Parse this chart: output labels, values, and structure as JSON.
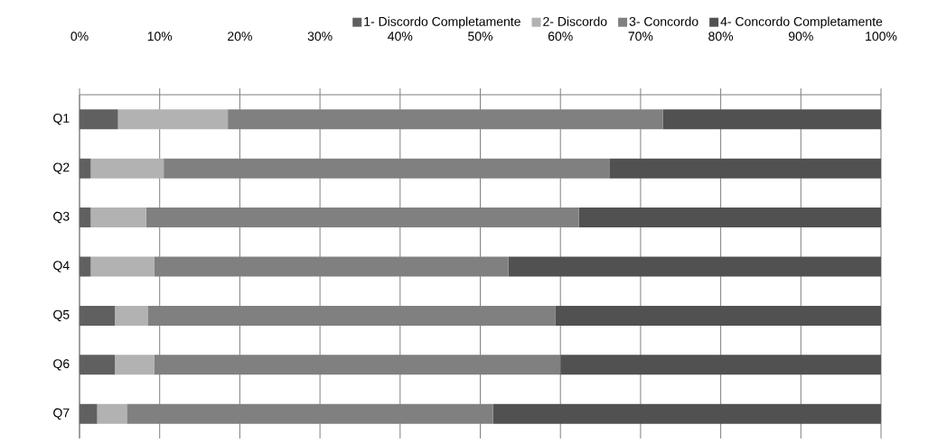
{
  "chart_data": {
    "type": "bar",
    "orientation": "horizontal",
    "stacked": true,
    "categories": [
      "Q1",
      "Q2",
      "Q3",
      "Q4",
      "Q5",
      "Q6",
      "Q7"
    ],
    "series": [
      {
        "name": "1- Discordo Completamente",
        "color": "#606060",
        "values": [
          4.8,
          1.4,
          1.4,
          1.4,
          4.4,
          4.4,
          2.2
        ]
      },
      {
        "name": "2- Discordo",
        "color": "#b2b2b2",
        "values": [
          13.7,
          9.1,
          6.9,
          7.9,
          4.1,
          4.9,
          3.7
        ]
      },
      {
        "name": "3- Concordo",
        "color": "#808080",
        "values": [
          54.3,
          55.6,
          54.0,
          44.2,
          50.9,
          50.7,
          45.7
        ]
      },
      {
        "name": "4- Concordo Completamente",
        "color": "#515151",
        "values": [
          27.2,
          33.9,
          37.7,
          46.5,
          40.6,
          40.0,
          48.4
        ]
      }
    ],
    "xlim": [
      0,
      100
    ],
    "xticks": [
      {
        "value": 0,
        "label": "0%"
      },
      {
        "value": 10,
        "label": "10%"
      },
      {
        "value": 20,
        "label": "20%"
      },
      {
        "value": 30,
        "label": "30%"
      },
      {
        "value": 40,
        "label": "40%"
      },
      {
        "value": 50,
        "label": "50%"
      },
      {
        "value": 60,
        "label": "60%"
      },
      {
        "value": 70,
        "label": "70%"
      },
      {
        "value": 80,
        "label": "80%"
      },
      {
        "value": 90,
        "label": "90%"
      },
      {
        "value": 100,
        "label": "100%"
      }
    ],
    "grid": "x",
    "legend": "top"
  }
}
